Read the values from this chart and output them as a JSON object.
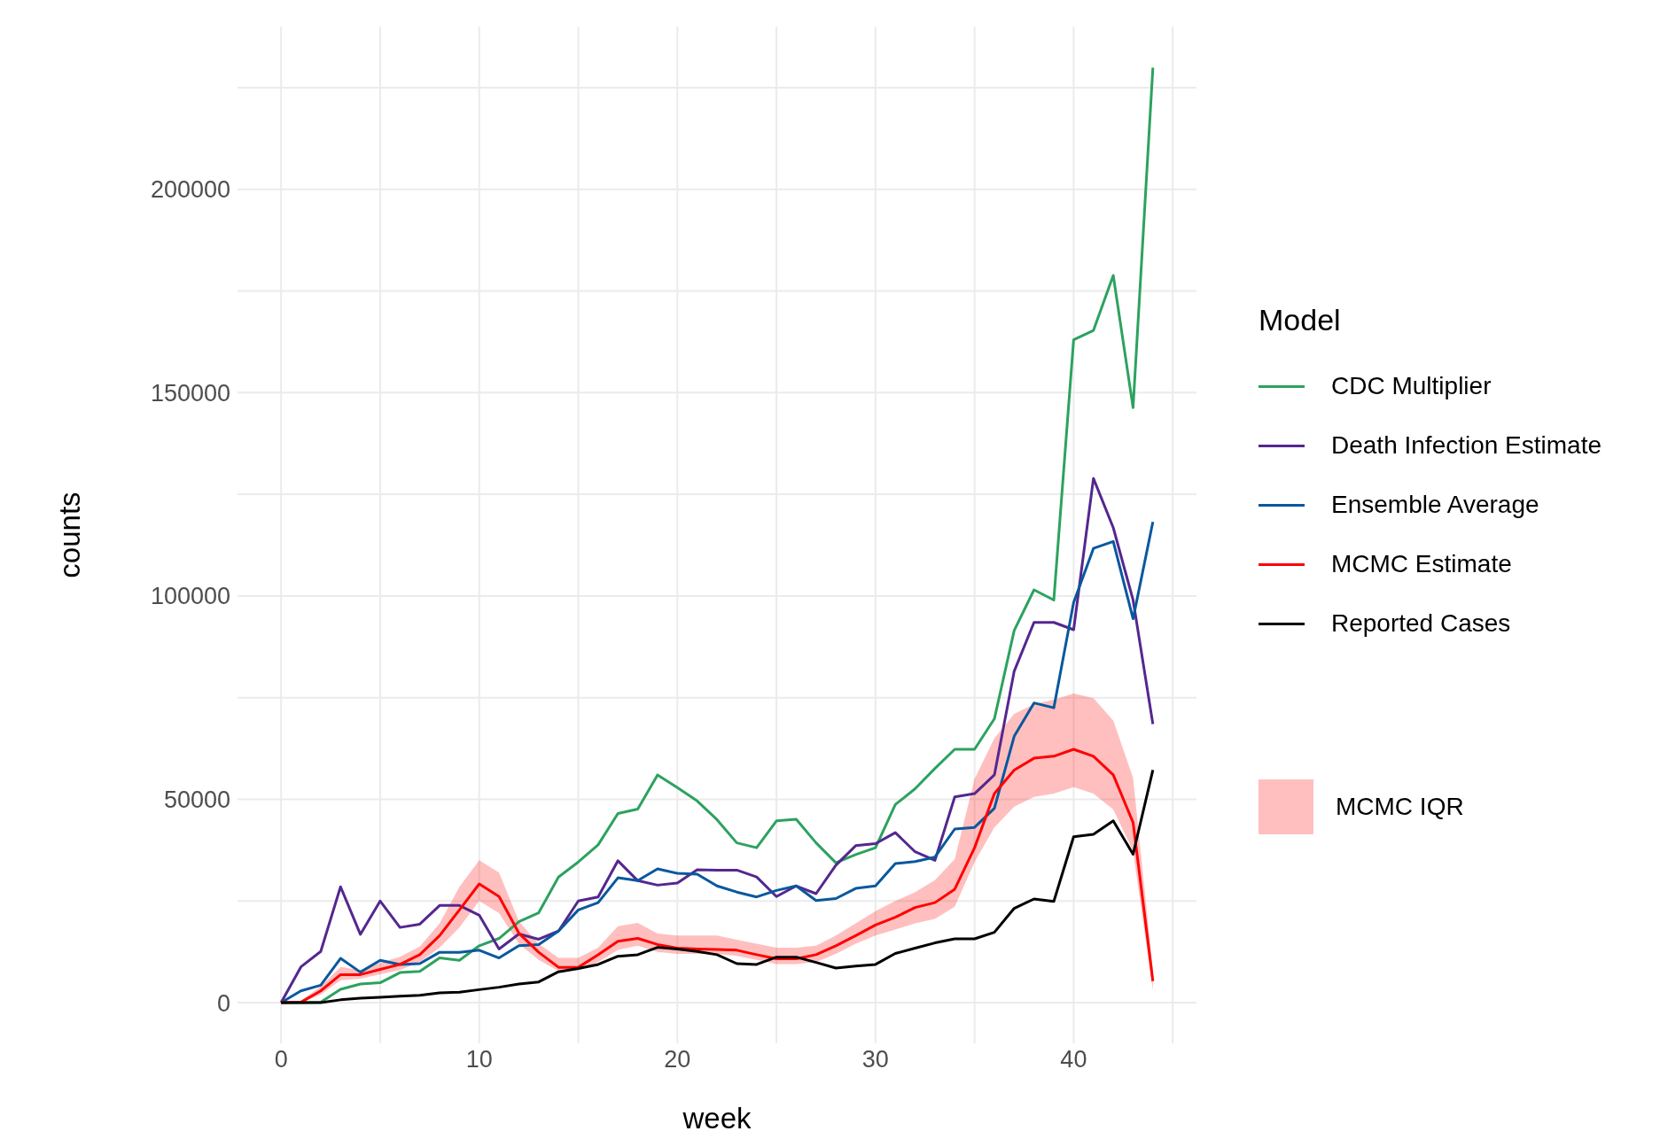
{
  "chart_data": {
    "type": "line",
    "xlabel": "week",
    "ylabel": "counts",
    "legend_title": "Model",
    "legend": "right",
    "grid": true,
    "annotations": [
      "MCMC IQR"
    ],
    "x": [
      0,
      1,
      2,
      3,
      4,
      5,
      6,
      7,
      8,
      9,
      10,
      11,
      12,
      13,
      14,
      15,
      16,
      17,
      18,
      19,
      20,
      21,
      22,
      23,
      24,
      25,
      26,
      27,
      28,
      29,
      30,
      31,
      32,
      33,
      34,
      35,
      36,
      37,
      38,
      39,
      40,
      41,
      42,
      43,
      44
    ],
    "xlim": [
      -2.2,
      46.2
    ],
    "xticks": [
      0,
      {
        "value": 5,
        "label": null
      },
      10,
      {
        "value": 15,
        "label": null
      },
      20,
      {
        "value": 25,
        "label": null
      },
      30,
      {
        "value": 35,
        "label": null
      },
      40,
      {
        "value": 45,
        "label": null
      }
    ],
    "ylim": [
      -10000,
      240000
    ],
    "yticks": [
      0,
      {
        "value": 25000,
        "label": null
      },
      50000,
      {
        "value": 75000,
        "label": null
      },
      100000,
      {
        "value": 125000,
        "label": null
      },
      150000,
      {
        "value": 175000,
        "label": null
      },
      200000,
      {
        "value": 225000,
        "label": null
      }
    ],
    "series": [
      {
        "name": "CDC Multiplier",
        "color": "#2ca25f",
        "values": [
          0,
          0,
          100,
          3300,
          4600,
          4900,
          7400,
          7700,
          11000,
          10400,
          14000,
          15800,
          19900,
          22100,
          30900,
          34600,
          38800,
          46500,
          47600,
          56000,
          52900,
          49600,
          45000,
          39300,
          38100,
          44700,
          45100,
          39300,
          34400,
          36400,
          38100,
          48700,
          52600,
          57600,
          62300,
          62300,
          69800,
          91500,
          101500,
          99000,
          163000,
          165300,
          178800,
          146300,
          229900
        ]
      },
      {
        "name": "Death Infection Estimate",
        "color": "#54278f",
        "values": [
          0,
          8800,
          12600,
          28500,
          16800,
          25000,
          18500,
          19300,
          23900,
          23900,
          21500,
          13200,
          16900,
          15600,
          17600,
          25000,
          26000,
          34900,
          30000,
          28900,
          29400,
          32700,
          32600,
          32600,
          30900,
          26100,
          28700,
          26800,
          33800,
          38600,
          39100,
          41800,
          37100,
          35000,
          50600,
          51400,
          56000,
          81500,
          93500,
          93500,
          91700,
          128900,
          116800,
          99000,
          68500
        ]
      },
      {
        "name": "Ensemble Average",
        "color": "#08589e",
        "values": [
          0,
          2900,
          4300,
          10900,
          7500,
          10400,
          9400,
          9600,
          12400,
          12400,
          12900,
          11000,
          14000,
          14300,
          17600,
          22800,
          24600,
          30700,
          30000,
          32900,
          31800,
          31600,
          28700,
          27200,
          26000,
          27600,
          28700,
          25100,
          25600,
          28100,
          28700,
          34200,
          34700,
          35800,
          42700,
          43100,
          47800,
          65500,
          73700,
          72500,
          98400,
          111700,
          113400,
          94400,
          118200
        ]
      },
      {
        "name": "MCMC Estimate",
        "color": "#ff0000",
        "values": [
          0,
          100,
          2900,
          6900,
          6900,
          8200,
          9400,
          11800,
          16500,
          22800,
          29200,
          26100,
          17100,
          12400,
          8700,
          8700,
          11800,
          15100,
          15800,
          14300,
          13400,
          13200,
          13100,
          12900,
          11800,
          10800,
          10800,
          11800,
          14000,
          16500,
          19100,
          21000,
          23400,
          24600,
          27900,
          38100,
          51400,
          57200,
          60100,
          60600,
          62300,
          60600,
          56000,
          44300,
          5300
        ],
        "lower": [
          0,
          0,
          2000,
          5500,
          5900,
          7000,
          8000,
          10000,
          13500,
          18500,
          25000,
          22000,
          14500,
          10500,
          7800,
          8000,
          10000,
          13000,
          14000,
          12500,
          12000,
          12000,
          12000,
          11500,
          10500,
          9500,
          9500,
          10000,
          12000,
          14500,
          16500,
          18000,
          19500,
          20600,
          23600,
          34600,
          43100,
          48200,
          50600,
          51400,
          53000,
          51400,
          47500,
          37300,
          3000
        ],
        "upper": [
          0,
          500,
          4000,
          8800,
          8000,
          9800,
          11300,
          13800,
          19500,
          28500,
          35000,
          32000,
          20000,
          14500,
          11000,
          11000,
          13500,
          18800,
          19600,
          17000,
          16500,
          16500,
          16500,
          15500,
          14500,
          13500,
          13500,
          14000,
          16500,
          19500,
          22500,
          25000,
          27200,
          30100,
          35300,
          55000,
          65000,
          71000,
          73400,
          74500,
          76000,
          74900,
          69400,
          55300,
          8000
        ]
      },
      {
        "name": "Reported Cases",
        "color": "#000000",
        "values": [
          0,
          0,
          0,
          700,
          1100,
          1300,
          1600,
          1800,
          2400,
          2600,
          3200,
          3800,
          4600,
          5100,
          7600,
          8400,
          9400,
          11400,
          11800,
          13600,
          13200,
          12600,
          11800,
          9600,
          9400,
          11200,
          11200,
          9900,
          8500,
          9000,
          9400,
          12100,
          13400,
          14700,
          15700,
          15700,
          17300,
          23200,
          25500,
          24900,
          40800,
          41400,
          44700,
          36500,
          57200
        ]
      }
    ]
  }
}
